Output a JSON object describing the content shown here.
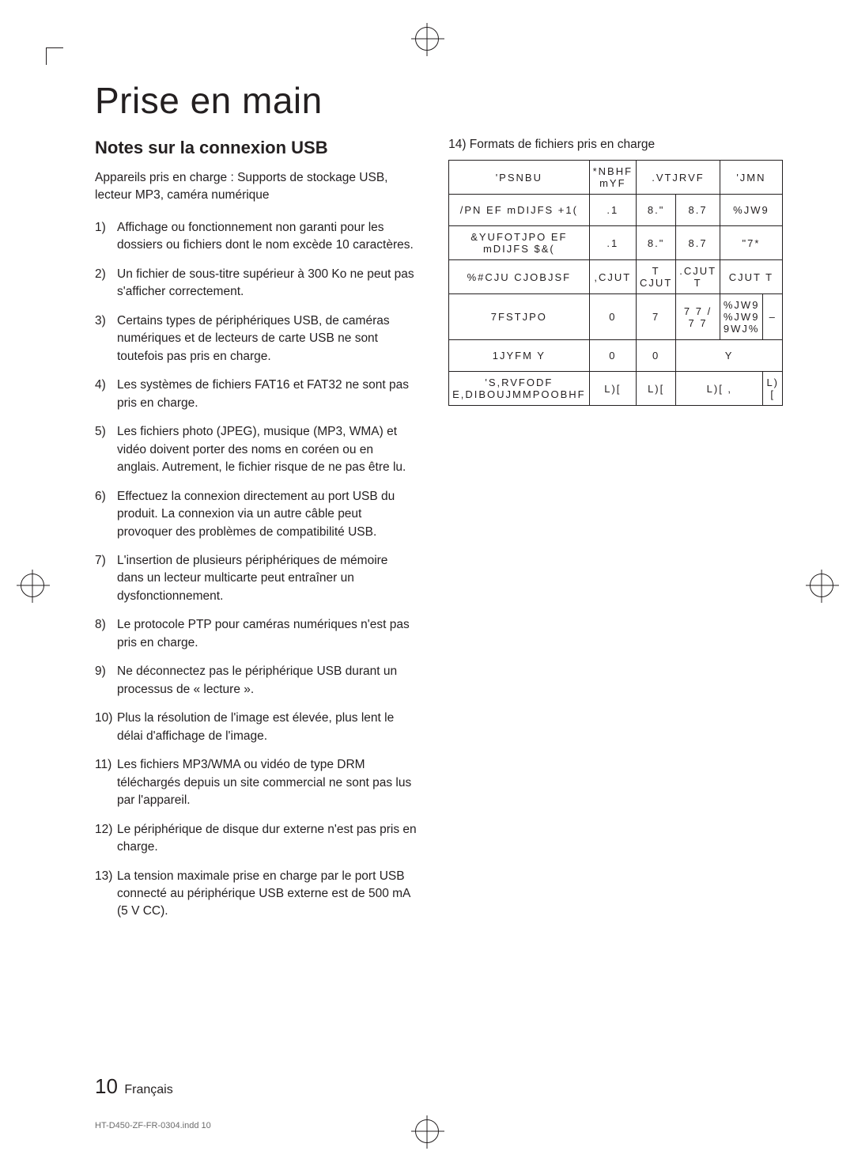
{
  "title": "Prise en main",
  "subtitle": "Notes sur la connexion USB",
  "intro": "Appareils pris en charge : Supports de stockage USB, lecteur MP3, caméra numérique",
  "notes": [
    "Affichage ou fonctionnement non garanti pour les dossiers ou fichiers dont le nom excède 10 caractères.",
    "Un fichier de sous-titre supérieur à 300 Ko ne peut pas s'afficher correctement.",
    "Certains types de périphériques USB, de caméras numériques et de lecteurs de carte USB ne sont toutefois pas pris en charge.",
    "Les systèmes de fichiers FAT16 et FAT32 ne sont pas pris en charge.",
    "Les fichiers photo (JPEG), musique (MP3, WMA) et vidéo doivent porter des noms en coréen ou en anglais. Autrement, le fichier risque de ne pas être lu.",
    "Effectuez la connexion directement au port USB du produit. La connexion via un autre câble peut provoquer des problèmes de compatibilité USB.",
    "L'insertion de plusieurs périphériques de mémoire dans un lecteur multicarte peut entraîner un dysfonctionnement.",
    "Le protocole PTP pour caméras numériques n'est pas pris en charge.",
    "Ne déconnectez pas le périphérique USB durant un processus de « lecture ».",
    "Plus la résolution de l'image est élevée, plus lent le délai d'affichage de l'image.",
    "Les fichiers MP3/WMA ou vidéo de type DRM téléchargés depuis un site commercial ne sont pas lus par l'appareil.",
    "Le périphérique de disque dur externe n'est pas pris en charge.",
    "La tension maximale prise en charge par le port USB connecté au périphérique USB externe est de 500 mA (5 V CC)."
  ],
  "caption14": "14) Formats de fichiers pris en charge",
  "table": {
    "header": [
      "'PSNBU",
      "*NBHF mYF",
      ".VTJRVF",
      "",
      "'JMN"
    ],
    "rows": [
      [
        "/PN EF mDIJFS +1(",
        ".1",
        "8.\"",
        "8.7",
        "%JW9"
      ],
      [
        "&YUFOTJPO EF mDIJFS $&(",
        ".1",
        "8.\"",
        "8.7",
        "\"7*"
      ],
      [
        "%#CJU CJOBJSF",
        ",CJUT",
        "T CJUT",
        ".CJUT T",
        "CJUT T"
      ],
      [
        "7FSTJPO",
        "0",
        "7",
        "7 7 / 7 7",
        "%JW9 %JW9 9WJ%",
        "–"
      ],
      [
        "1JYFM Y",
        "0",
        "0",
        "Y",
        ""
      ],
      [
        "'S,RVFODF E,DIBOUJMMPOOBHF",
        "L)[",
        "L)[",
        "L)[ ,",
        "L)["
      ]
    ]
  },
  "footer": {
    "page_number": "10",
    "lang": "Français"
  },
  "indd": "HT-D450-ZF-FR-0304.indd   10"
}
